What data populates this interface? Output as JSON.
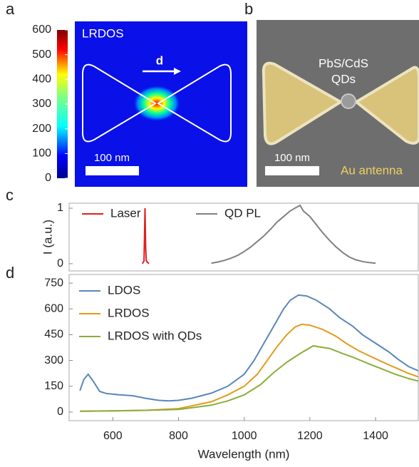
{
  "panels": {
    "a": {
      "label": "a",
      "title": "LRDOS",
      "arrow_label": "d",
      "scale_bar": "100 nm",
      "colorbar": {
        "lim": [
          0,
          600
        ],
        "ticks": [
          0,
          100,
          200,
          300,
          400,
          500,
          600
        ]
      }
    },
    "b": {
      "label": "b",
      "particles": [
        "PbS/CdS",
        "QDs"
      ],
      "scale_bar": "100 nm",
      "material": "Au antenna"
    },
    "c": {
      "label": "c"
    },
    "d": {
      "label": "d"
    }
  },
  "chart_data": [
    {
      "type": "line",
      "ylabel": "I (a.u.)",
      "xlim": [
        467,
        1530
      ],
      "ylim": [
        -0.13,
        1.09
      ],
      "yticks": [
        0,
        1
      ],
      "legend": "top",
      "series": [
        {
          "name": "Laser",
          "color": "#e02020",
          "x": [
            690,
            695,
            698,
            700,
            702,
            710
          ],
          "values": [
            0,
            0.05,
            1.0,
            0.3,
            0.05,
            0
          ]
        },
        {
          "name": "QD PL",
          "color": "#808080",
          "x": [
            900,
            920,
            940,
            960,
            980,
            1000,
            1020,
            1040,
            1060,
            1080,
            1100,
            1120,
            1140,
            1160,
            1170,
            1180,
            1200,
            1220,
            1240,
            1260,
            1280,
            1300,
            1320,
            1340,
            1360,
            1380,
            1400
          ],
          "values": [
            0.01,
            0.03,
            0.06,
            0.1,
            0.15,
            0.22,
            0.3,
            0.4,
            0.5,
            0.62,
            0.75,
            0.85,
            0.95,
            1.02,
            1.05,
            0.95,
            0.85,
            0.7,
            0.55,
            0.42,
            0.3,
            0.2,
            0.12,
            0.07,
            0.04,
            0.02,
            0.01
          ]
        }
      ]
    },
    {
      "type": "line",
      "xlabel": "Wavelength (nm)",
      "xlim": [
        467,
        1530
      ],
      "ylim": [
        -50,
        800
      ],
      "xticks": [
        600,
        800,
        1000,
        1200,
        1400
      ],
      "yticks": [
        0,
        150,
        300,
        450,
        600,
        750
      ],
      "legend": "top-left",
      "series": [
        {
          "name": "LDOS",
          "color": "#5b86b8",
          "x": [
            500,
            512,
            525,
            540,
            560,
            580,
            620,
            660,
            700,
            740,
            770,
            800,
            840,
            900,
            950,
            1000,
            1030,
            1060,
            1090,
            1120,
            1140,
            1165,
            1190,
            1220,
            1260,
            1290,
            1330,
            1360,
            1400,
            1440,
            1470,
            1500,
            1530
          ],
          "values": [
            125,
            190,
            220,
            180,
            120,
            108,
            100,
            95,
            80,
            68,
            65,
            68,
            80,
            110,
            150,
            220,
            300,
            400,
            500,
            600,
            650,
            680,
            675,
            650,
            600,
            550,
            500,
            450,
            400,
            350,
            305,
            265,
            240
          ]
        },
        {
          "name": "LRDOS",
          "color": "#e39b1a",
          "x": [
            500,
            600,
            700,
            800,
            900,
            950,
            1000,
            1040,
            1070,
            1100,
            1130,
            1155,
            1175,
            1200,
            1240,
            1280,
            1310,
            1350,
            1400,
            1440,
            1470,
            1500,
            1530
          ],
          "values": [
            5,
            7,
            10,
            20,
            60,
            100,
            150,
            220,
            300,
            380,
            450,
            495,
            510,
            505,
            480,
            440,
            400,
            355,
            310,
            275,
            250,
            225,
            205
          ]
        },
        {
          "name": "LRDOS with QDs",
          "color": "#8aae3a",
          "x": [
            500,
            600,
            700,
            800,
            900,
            950,
            1000,
            1050,
            1090,
            1130,
            1170,
            1210,
            1260,
            1300,
            1330,
            1380,
            1420,
            1460,
            1500,
            1530
          ],
          "values": [
            5,
            7,
            10,
            15,
            40,
            65,
            100,
            160,
            230,
            290,
            340,
            385,
            370,
            340,
            320,
            280,
            250,
            220,
            195,
            180
          ]
        }
      ]
    }
  ]
}
